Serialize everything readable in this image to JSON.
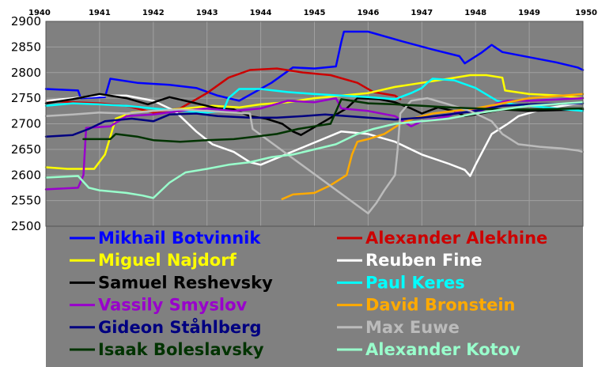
{
  "chart_data": {
    "type": "line",
    "title": "",
    "xlabel": "",
    "ylabel": "",
    "xlim": [
      1940,
      1950
    ],
    "ylim": [
      2500,
      2900
    ],
    "x_ticks": [
      "1940",
      "1941",
      "1942",
      "1943",
      "1944",
      "1945",
      "1946",
      "1947",
      "1948",
      "1949",
      "1950"
    ],
    "y_ticks": [
      "2900",
      "2850",
      "2800",
      "2750",
      "2700",
      "2650",
      "2600",
      "2550",
      "2500"
    ],
    "grid": true,
    "background_color": "#808080",
    "legend": "bottom",
    "series": [
      {
        "name": "Mikhail Botvinnik",
        "color": "#0000ff",
        "points": [
          [
            1940.0,
            2768
          ],
          [
            1940.6,
            2765
          ],
          [
            1940.65,
            2750
          ],
          [
            1941.1,
            2752
          ],
          [
            1941.2,
            2788
          ],
          [
            1941.7,
            2780
          ],
          [
            1942.3,
            2776
          ],
          [
            1942.8,
            2770
          ],
          [
            1943.2,
            2755
          ],
          [
            1943.6,
            2745
          ],
          [
            1944.2,
            2780
          ],
          [
            1944.6,
            2810
          ],
          [
            1945.0,
            2808
          ],
          [
            1945.4,
            2812
          ],
          [
            1945.5,
            2860
          ],
          [
            1945.55,
            2880
          ],
          [
            1946.0,
            2880
          ],
          [
            1946.6,
            2862
          ],
          [
            1947.2,
            2845
          ],
          [
            1947.7,
            2832
          ],
          [
            1947.8,
            2818
          ],
          [
            1948.1,
            2838
          ],
          [
            1948.3,
            2854
          ],
          [
            1948.5,
            2840
          ],
          [
            1949.0,
            2830
          ],
          [
            1949.5,
            2820
          ],
          [
            1949.9,
            2810
          ],
          [
            1950.0,
            2805
          ]
        ]
      },
      {
        "name": "Alexander Alekhine",
        "color": "#cc0000",
        "points": [
          [
            1940.0,
            2745
          ],
          [
            1940.5,
            2742
          ],
          [
            1941.0,
            2740
          ],
          [
            1941.5,
            2735
          ],
          [
            1942.0,
            2722
          ],
          [
            1942.5,
            2730
          ],
          [
            1943.0,
            2760
          ],
          [
            1943.4,
            2790
          ],
          [
            1943.8,
            2805
          ],
          [
            1944.3,
            2808
          ],
          [
            1944.8,
            2800
          ],
          [
            1945.3,
            2795
          ],
          [
            1945.8,
            2780
          ],
          [
            1946.1,
            2762
          ],
          [
            1946.5,
            2755
          ],
          [
            1946.6,
            2748
          ]
        ]
      },
      {
        "name": "Miguel Najdorf",
        "color": "#ffff00",
        "points": [
          [
            1940.0,
            2615
          ],
          [
            1940.4,
            2612
          ],
          [
            1940.9,
            2612
          ],
          [
            1941.1,
            2640
          ],
          [
            1941.3,
            2710
          ],
          [
            1941.6,
            2722
          ],
          [
            1942.0,
            2725
          ],
          [
            1942.6,
            2730
          ],
          [
            1943.1,
            2735
          ],
          [
            1943.6,
            2732
          ],
          [
            1944.0,
            2738
          ],
          [
            1944.5,
            2742
          ],
          [
            1945.0,
            2750
          ],
          [
            1945.5,
            2755
          ],
          [
            1946.0,
            2760
          ],
          [
            1946.5,
            2772
          ],
          [
            1947.0,
            2780
          ],
          [
            1947.5,
            2788
          ],
          [
            1947.9,
            2795
          ],
          [
            1948.2,
            2795
          ],
          [
            1948.5,
            2790
          ],
          [
            1948.55,
            2765
          ],
          [
            1949.0,
            2758
          ],
          [
            1949.6,
            2755
          ],
          [
            1950.0,
            2750
          ]
        ]
      },
      {
        "name": "Reuben Fine",
        "color": "#ffffff",
        "points": [
          [
            1940.0,
            2745
          ],
          [
            1940.5,
            2750
          ],
          [
            1941.0,
            2755
          ],
          [
            1941.5,
            2755
          ],
          [
            1942.0,
            2745
          ],
          [
            1942.4,
            2725
          ],
          [
            1942.8,
            2685
          ],
          [
            1943.1,
            2660
          ],
          [
            1943.5,
            2645
          ],
          [
            1943.8,
            2625
          ],
          [
            1944.0,
            2620
          ],
          [
            1945.5,
            2685
          ],
          [
            1946.0,
            2680
          ],
          [
            1946.5,
            2665
          ],
          [
            1947.0,
            2640
          ],
          [
            1947.5,
            2622
          ],
          [
            1947.8,
            2610
          ],
          [
            1947.9,
            2598
          ],
          [
            1948.0,
            2620
          ],
          [
            1948.3,
            2680
          ],
          [
            1948.6,
            2700
          ],
          [
            1948.8,
            2715
          ],
          [
            1949.3,
            2730
          ],
          [
            1949.8,
            2738
          ],
          [
            1950.0,
            2740
          ]
        ]
      },
      {
        "name": "Samuel Reshevsky",
        "color": "#000000",
        "points": [
          [
            1940.0,
            2740
          ],
          [
            1940.5,
            2748
          ],
          [
            1941.0,
            2758
          ],
          [
            1941.5,
            2750
          ],
          [
            1941.9,
            2738
          ],
          [
            1942.3,
            2752
          ],
          [
            1942.8,
            2740
          ],
          [
            1943.2,
            2730
          ],
          [
            1943.5,
            2728
          ],
          [
            1943.8,
            2715
          ],
          [
            1944.1,
            2710
          ],
          [
            1944.4,
            2700
          ],
          [
            1944.6,
            2685
          ],
          [
            1944.75,
            2678
          ],
          [
            1945.6,
            2730
          ],
          [
            1945.8,
            2750
          ],
          [
            1946.2,
            2748
          ],
          [
            1946.5,
            2742
          ],
          [
            1946.8,
            2730
          ],
          [
            1947.0,
            2720
          ],
          [
            1947.3,
            2732
          ],
          [
            1947.6,
            2725
          ],
          [
            1947.8,
            2715
          ],
          [
            1948.0,
            2718
          ],
          [
            1948.5,
            2728
          ],
          [
            1949.0,
            2725
          ],
          [
            1950.0,
            2728
          ]
        ]
      },
      {
        "name": "Paul Keres",
        "color": "#00ffff",
        "points": [
          [
            1940.0,
            2735
          ],
          [
            1940.5,
            2740
          ],
          [
            1941.0,
            2738
          ],
          [
            1941.5,
            2735
          ],
          [
            1942.0,
            2730
          ],
          [
            1942.5,
            2725
          ],
          [
            1943.0,
            2722
          ],
          [
            1943.3,
            2725
          ],
          [
            1943.4,
            2750
          ],
          [
            1943.6,
            2768
          ],
          [
            1944.0,
            2768
          ],
          [
            1944.5,
            2762
          ],
          [
            1945.0,
            2758
          ],
          [
            1945.5,
            2755
          ],
          [
            1946.0,
            2752
          ],
          [
            1946.5,
            2748
          ],
          [
            1946.8,
            2760
          ],
          [
            1947.0,
            2770
          ],
          [
            1947.1,
            2780
          ],
          [
            1947.2,
            2788
          ],
          [
            1947.6,
            2785
          ],
          [
            1948.0,
            2770
          ],
          [
            1948.4,
            2745
          ],
          [
            1948.7,
            2738
          ],
          [
            1949.0,
            2735
          ],
          [
            1949.5,
            2730
          ],
          [
            1950.0,
            2725
          ]
        ]
      },
      {
        "name": "Vassily Smyslov",
        "color": "#9900cc",
        "points": [
          [
            1940.0,
            2572
          ],
          [
            1940.6,
            2575
          ],
          [
            1940.7,
            2600
          ],
          [
            1940.75,
            2692
          ],
          [
            1941.2,
            2695
          ],
          [
            1941.5,
            2715
          ],
          [
            1942.0,
            2718
          ],
          [
            1942.5,
            2725
          ],
          [
            1943.0,
            2730
          ],
          [
            1943.5,
            2725
          ],
          [
            1944.0,
            2730
          ],
          [
            1944.5,
            2745
          ],
          [
            1945.0,
            2742
          ],
          [
            1945.4,
            2750
          ],
          [
            1945.5,
            2730
          ],
          [
            1946.0,
            2725
          ],
          [
            1946.5,
            2715
          ],
          [
            1946.8,
            2695
          ],
          [
            1947.0,
            2705
          ],
          [
            1947.5,
            2715
          ],
          [
            1947.8,
            2730
          ],
          [
            1948.1,
            2725
          ],
          [
            1948.4,
            2740
          ],
          [
            1948.6,
            2745
          ],
          [
            1949.0,
            2745
          ],
          [
            1950.0,
            2750
          ]
        ]
      },
      {
        "name": "David Bronstein",
        "color": "#ffaa00",
        "points": [
          [
            1944.4,
            2553
          ],
          [
            1944.6,
            2562
          ],
          [
            1945.0,
            2565
          ],
          [
            1945.3,
            2580
          ],
          [
            1945.6,
            2600
          ],
          [
            1945.7,
            2640
          ],
          [
            1945.8,
            2665
          ],
          [
            1946.0,
            2670
          ],
          [
            1946.3,
            2680
          ],
          [
            1946.6,
            2700
          ],
          [
            1946.9,
            2712
          ],
          [
            1947.2,
            2720
          ],
          [
            1947.6,
            2725
          ],
          [
            1948.0,
            2730
          ],
          [
            1948.5,
            2740
          ],
          [
            1949.0,
            2750
          ],
          [
            1950.0,
            2758
          ]
        ]
      },
      {
        "name": "Gideon Ståhlberg",
        "color": "#000080",
        "points": [
          [
            1940.0,
            2675
          ],
          [
            1940.5,
            2678
          ],
          [
            1940.8,
            2690
          ],
          [
            1941.1,
            2705
          ],
          [
            1941.6,
            2710
          ],
          [
            1942.0,
            2705
          ],
          [
            1942.3,
            2718
          ],
          [
            1942.8,
            2720
          ],
          [
            1943.2,
            2715
          ],
          [
            1943.8,
            2712
          ],
          [
            1944.3,
            2712
          ],
          [
            1944.8,
            2715
          ],
          [
            1945.2,
            2718
          ],
          [
            1945.6,
            2715
          ],
          [
            1946.0,
            2712
          ],
          [
            1946.5,
            2708
          ],
          [
            1947.0,
            2712
          ],
          [
            1947.5,
            2718
          ],
          [
            1948.0,
            2725
          ],
          [
            1948.5,
            2735
          ],
          [
            1949.0,
            2738
          ],
          [
            1950.0,
            2740
          ]
        ]
      },
      {
        "name": "Max Euwe",
        "color": "#bbbbbb",
        "points": [
          [
            1940.0,
            2715
          ],
          [
            1940.5,
            2718
          ],
          [
            1941.0,
            2722
          ],
          [
            1941.5,
            2720
          ],
          [
            1942.0,
            2725
          ],
          [
            1942.5,
            2728
          ],
          [
            1943.0,
            2725
          ],
          [
            1943.5,
            2722
          ],
          [
            1943.8,
            2720
          ],
          [
            1943.85,
            2690
          ],
          [
            1946.0,
            2525
          ],
          [
            1946.15,
            2545
          ],
          [
            1946.3,
            2570
          ],
          [
            1946.5,
            2600
          ],
          [
            1946.55,
            2650
          ],
          [
            1946.6,
            2720
          ],
          [
            1946.8,
            2745
          ],
          [
            1947.1,
            2750
          ],
          [
            1947.5,
            2738
          ],
          [
            1947.9,
            2725
          ],
          [
            1948.3,
            2705
          ],
          [
            1948.5,
            2680
          ],
          [
            1948.8,
            2660
          ],
          [
            1949.2,
            2655
          ],
          [
            1949.6,
            2652
          ],
          [
            1949.9,
            2648
          ],
          [
            1950.0,
            2645
          ]
        ]
      },
      {
        "name": "Isaak Boleslavsky",
        "color": "#003300",
        "points": [
          [
            1940.7,
            2670
          ],
          [
            1941.2,
            2670
          ],
          [
            1941.3,
            2680
          ],
          [
            1941.7,
            2675
          ],
          [
            1942.0,
            2668
          ],
          [
            1942.5,
            2665
          ],
          [
            1943.0,
            2668
          ],
          [
            1943.5,
            2670
          ],
          [
            1943.9,
            2675
          ],
          [
            1944.3,
            2680
          ],
          [
            1944.7,
            2690
          ],
          [
            1945.0,
            2695
          ],
          [
            1945.3,
            2700
          ],
          [
            1945.5,
            2748
          ],
          [
            1946.0,
            2740
          ],
          [
            1946.5,
            2738
          ],
          [
            1947.0,
            2735
          ],
          [
            1947.5,
            2732
          ],
          [
            1948.0,
            2730
          ],
          [
            1948.5,
            2728
          ],
          [
            1949.0,
            2728
          ],
          [
            1950.0,
            2730
          ]
        ]
      },
      {
        "name": "Alexander Kotov",
        "color": "#99ffcc",
        "points": [
          [
            1940.0,
            2595
          ],
          [
            1940.6,
            2598
          ],
          [
            1940.8,
            2575
          ],
          [
            1941.0,
            2570
          ],
          [
            1941.5,
            2565
          ],
          [
            1941.8,
            2560
          ],
          [
            1942.0,
            2555
          ],
          [
            1942.3,
            2585
          ],
          [
            1942.6,
            2605
          ],
          [
            1943.0,
            2612
          ],
          [
            1943.4,
            2620
          ],
          [
            1943.8,
            2625
          ],
          [
            1944.2,
            2635
          ],
          [
            1944.6,
            2640
          ],
          [
            1945.0,
            2650
          ],
          [
            1945.4,
            2660
          ],
          [
            1945.8,
            2680
          ],
          [
            1946.1,
            2690
          ],
          [
            1946.5,
            2700
          ],
          [
            1947.0,
            2705
          ],
          [
            1947.5,
            2710
          ],
          [
            1948.0,
            2720
          ],
          [
            1948.5,
            2728
          ],
          [
            1949.0,
            2735
          ],
          [
            1950.0,
            2742
          ]
        ]
      }
    ]
  }
}
